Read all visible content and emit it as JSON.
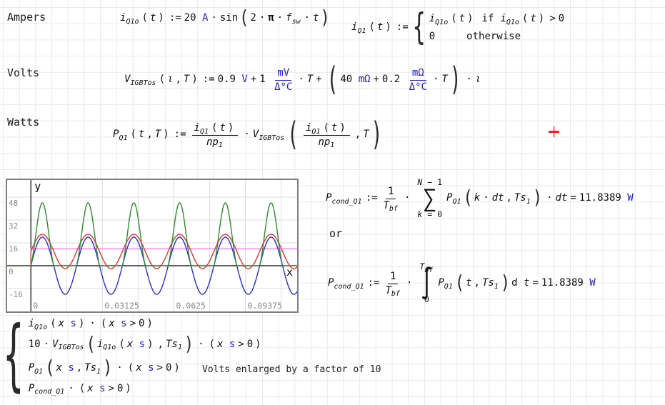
{
  "labels": {
    "ampers": "Ampers",
    "volts": "Volts",
    "watts": "Watts",
    "or": "or",
    "caption": "Volts enlarged by a factor of 10"
  },
  "results": {
    "p_cond_value": "11.8389",
    "p_cond_unit": "W"
  },
  "formulas": {
    "iq1o": {
      "parts": [
        {
          "t": "i",
          "c": "v"
        },
        {
          "t": "Q1o",
          "c": "s"
        },
        {
          "t": "(",
          "c": "p"
        },
        {
          "t": "t",
          "c": "v"
        },
        {
          "t": ")",
          "c": "p"
        },
        {
          "t": ":=",
          "c": "o"
        },
        {
          "t": "20 "
        },
        {
          "t": "A",
          "c": "u"
        },
        {
          "t": "·",
          "c": "o"
        },
        {
          "t": "sin"
        },
        {
          "t": "(",
          "c": "bp"
        },
        {
          "t": "2"
        },
        {
          "t": "·",
          "c": "o"
        },
        {
          "t": "π",
          "c": "b"
        },
        {
          "t": "·",
          "c": "o"
        },
        {
          "t": "f",
          "c": "v"
        },
        {
          "t": "sw",
          "c": "s"
        },
        {
          "t": "·",
          "c": "o"
        },
        {
          "t": "t",
          "c": "v"
        },
        {
          "t": ")",
          "c": "bp"
        }
      ]
    },
    "iq1": {
      "parts": [
        {
          "t": "i",
          "c": "v"
        },
        {
          "t": "Q1",
          "c": "s"
        },
        {
          "t": "(",
          "c": "p"
        },
        {
          "t": "t",
          "c": "v"
        },
        {
          "t": ")",
          "c": "p"
        },
        {
          "t": ":=",
          "c": "o"
        },
        {
          "t": "{",
          "c": "brace2"
        },
        {
          "rows": [
            [
              {
                "t": "i",
                "c": "v"
              },
              {
                "t": "Q1o",
                "c": "s"
              },
              {
                "t": "(",
                "c": "p"
              },
              {
                "t": "t",
                "c": "v"
              },
              {
                "t": ")",
                "c": "p"
              },
              {
                "t": "if",
                "c": "o2"
              },
              {
                "t": "i",
                "c": "v"
              },
              {
                "t": "Q1o",
                "c": "s"
              },
              {
                "t": "(",
                "c": "p"
              },
              {
                "t": "t",
                "c": "v"
              },
              {
                "t": ")",
                "c": "p"
              },
              {
                "t": ">",
                "c": "o"
              },
              {
                "t": "0"
              }
            ],
            [
              {
                "t": "0"
              },
              {
                "t": "otherwise",
                "c": "ml44"
              }
            ]
          ]
        }
      ]
    },
    "vigbtos": {
      "parts": [
        {
          "t": "V",
          "c": "v"
        },
        {
          "t": "IGBTos",
          "c": "s"
        },
        {
          "t": "(",
          "c": "p"
        },
        {
          "t": "ι",
          "c": "v"
        },
        {
          "t": ",",
          "c": "p"
        },
        {
          "t": "T",
          "c": "v"
        },
        {
          "t": ")",
          "c": "p"
        },
        {
          "t": ":=",
          "c": "o"
        },
        {
          "t": "0.9 "
        },
        {
          "t": "V",
          "c": "u"
        },
        {
          "t": "+",
          "c": "o"
        },
        {
          "t": "1 "
        },
        {
          "c": "u",
          "frac": {
            "n": [
              {
                "t": "mV",
                "c": "u"
              }
            ],
            "d": [
              {
                "t": "Δ°C",
                "c": "u"
              }
            ]
          }
        },
        {
          "t": "·",
          "c": "o"
        },
        {
          "t": "T",
          "c": "v"
        },
        {
          "t": "+",
          "c": "o"
        },
        {
          "t": "(",
          "c": "bp2"
        },
        {
          "t": "40 "
        },
        {
          "t": "mΩ",
          "c": "u"
        },
        {
          "t": "+",
          "c": "o"
        },
        {
          "t": "0.2 "
        },
        {
          "c": "u",
          "frac": {
            "n": [
              {
                "t": "mΩ",
                "c": "u"
              }
            ],
            "d": [
              {
                "t": "Δ°C",
                "c": "u"
              }
            ]
          }
        },
        {
          "t": "·",
          "c": "o"
        },
        {
          "t": "T",
          "c": "v"
        },
        {
          "t": ")",
          "c": "bp2"
        },
        {
          "t": "·",
          "c": "o"
        },
        {
          "t": "ι",
          "c": "v"
        }
      ]
    },
    "pq1": {
      "parts": [
        {
          "t": "P",
          "c": "v"
        },
        {
          "t": "Q1",
          "c": "s"
        },
        {
          "t": "(",
          "c": "p"
        },
        {
          "t": "t",
          "c": "v"
        },
        {
          "t": ",",
          "c": "p"
        },
        {
          "t": "T",
          "c": "v"
        },
        {
          "t": ")",
          "c": "p"
        },
        {
          "t": ":=",
          "c": "o"
        },
        {
          "frac": {
            "n": [
              {
                "t": "i",
                "c": "v"
              },
              {
                "t": "Q1",
                "c": "s"
              },
              {
                "t": "(",
                "c": "p"
              },
              {
                "t": "t",
                "c": "v"
              },
              {
                "t": ")",
                "c": "p"
              }
            ],
            "d": [
              {
                "t": "np",
                "c": "v"
              },
              {
                "t": "1",
                "c": "s"
              }
            ]
          }
        },
        {
          "t": "·",
          "c": "o"
        },
        {
          "t": "V",
          "c": "v"
        },
        {
          "t": "IGBTos",
          "c": "s"
        },
        {
          "t": "(",
          "c": "bp2"
        },
        {
          "frac": {
            "n": [
              {
                "t": "i",
                "c": "v"
              },
              {
                "t": "Q1",
                "c": "s"
              },
              {
                "t": "(",
                "c": "p"
              },
              {
                "t": "t",
                "c": "v"
              },
              {
                "t": ")",
                "c": "p"
              }
            ],
            "d": [
              {
                "t": "np",
                "c": "v"
              },
              {
                "t": "1",
                "c": "s"
              }
            ]
          }
        },
        {
          "t": ",",
          "c": "p"
        },
        {
          "t": "T",
          "c": "v"
        },
        {
          "t": ")",
          "c": "bp2"
        }
      ]
    },
    "pcond_sum": {
      "parts": [
        {
          "t": "P",
          "c": "v"
        },
        {
          "t": "cond_Q1",
          "c": "s"
        },
        {
          "t": ":=",
          "c": "o"
        },
        {
          "frac": {
            "n": [
              {
                "t": "1"
              }
            ],
            "d": [
              {
                "t": "T",
                "c": "v"
              },
              {
                "t": "bf",
                "c": "s"
              }
            ]
          }
        },
        {
          "t": "·",
          "c": "o"
        },
        {
          "stack": {
            "top": [
              {
                "t": "N",
                "c": "v"
              },
              {
                "t": " − 1"
              }
            ],
            "sym": "∑",
            "symc": "sum",
            "bot": [
              {
                "t": "k",
                "c": "v"
              },
              {
                "t": " = 0"
              }
            ]
          }
        },
        {
          "t": "P",
          "c": "v"
        },
        {
          "t": "Q1",
          "c": "s"
        },
        {
          "t": "(",
          "c": "bp"
        },
        {
          "t": "k",
          "c": "v"
        },
        {
          "t": "·",
          "c": "o"
        },
        {
          "t": "dt",
          "c": "v"
        },
        {
          "t": ",",
          "c": "p"
        },
        {
          "t": "Ts",
          "c": "v"
        },
        {
          "t": "1",
          "c": "s"
        },
        {
          "t": ")",
          "c": "bp"
        },
        {
          "t": "·",
          "c": "o"
        },
        {
          "t": "dt",
          "c": "v"
        },
        {
          "t": "=",
          "c": "o"
        },
        {
          "t": "11.8389 "
        },
        {
          "t": "W",
          "c": "u"
        }
      ]
    },
    "pcond_int": {
      "parts": [
        {
          "t": "P",
          "c": "v"
        },
        {
          "t": "cond_Q1",
          "c": "s"
        },
        {
          "t": ":=",
          "c": "o"
        },
        {
          "frac": {
            "n": [
              {
                "t": "1"
              }
            ],
            "d": [
              {
                "t": "T",
                "c": "v"
              },
              {
                "t": "bf",
                "c": "s"
              }
            ]
          }
        },
        {
          "t": "·",
          "c": "o"
        },
        {
          "stack": {
            "top": [
              {
                "t": "T",
                "c": "v"
              },
              {
                "t": "bf",
                "c": "s"
              }
            ],
            "sym": "∫",
            "symc": "int",
            "bot": [
              {
                "t": "0"
              }
            ]
          }
        },
        {
          "t": "P",
          "c": "v"
        },
        {
          "t": "Q1",
          "c": "s"
        },
        {
          "t": "(",
          "c": "bp"
        },
        {
          "t": "t",
          "c": "v"
        },
        {
          "t": ",",
          "c": "p"
        },
        {
          "t": "Ts",
          "c": "v"
        },
        {
          "t": "1",
          "c": "s"
        },
        {
          "t": ")",
          "c": "bp"
        },
        {
          "t": "d "
        },
        {
          "t": "t",
          "c": "v"
        },
        {
          "t": "=",
          "c": "o"
        },
        {
          "t": "11.8389 "
        },
        {
          "t": "W",
          "c": "u"
        }
      ]
    },
    "tracelist": {
      "parts": [
        {
          "t": "{",
          "c": "brace4"
        },
        {
          "c": "tr",
          "rows": [
            [
              {
                "t": "i",
                "c": "v"
              },
              {
                "t": "Q1o",
                "c": "s"
              },
              {
                "t": "(",
                "c": "p"
              },
              {
                "t": "x",
                "c": "v"
              },
              {
                "t": " "
              },
              {
                "t": "s",
                "c": "u"
              },
              {
                "t": ")",
                "c": "p"
              },
              {
                "t": "·",
                "c": "o"
              },
              {
                "t": "(",
                "c": "p"
              },
              {
                "t": "x",
                "c": "v"
              },
              {
                "t": " "
              },
              {
                "t": "s",
                "c": "u"
              },
              {
                "t": ">",
                "c": "o"
              },
              {
                "t": "0"
              },
              {
                "t": ")",
                "c": "p"
              }
            ],
            [
              {
                "t": "10"
              },
              {
                "t": "·",
                "c": "o"
              },
              {
                "t": "V",
                "c": "v"
              },
              {
                "t": "IGBTos",
                "c": "s"
              },
              {
                "t": "(",
                "c": "bp"
              },
              {
                "t": "i",
                "c": "v"
              },
              {
                "t": "Q1o",
                "c": "s"
              },
              {
                "t": "(",
                "c": "p"
              },
              {
                "t": "x",
                "c": "v"
              },
              {
                "t": " "
              },
              {
                "t": "s",
                "c": "u"
              },
              {
                "t": ")",
                "c": "p"
              },
              {
                "t": ",",
                "c": "p"
              },
              {
                "t": "Ts",
                "c": "v"
              },
              {
                "t": "1",
                "c": "s"
              },
              {
                "t": ")",
                "c": "bp"
              },
              {
                "t": "·",
                "c": "o"
              },
              {
                "t": "(",
                "c": "p"
              },
              {
                "t": "x",
                "c": "v"
              },
              {
                "t": " "
              },
              {
                "t": "s",
                "c": "u"
              },
              {
                "t": ">",
                "c": "o"
              },
              {
                "t": "0"
              },
              {
                "t": ")",
                "c": "p"
              }
            ],
            [
              {
                "t": "P",
                "c": "v"
              },
              {
                "t": "Q1",
                "c": "s"
              },
              {
                "t": "(",
                "c": "bp"
              },
              {
                "t": "x",
                "c": "v"
              },
              {
                "t": " "
              },
              {
                "t": "s",
                "c": "u"
              },
              {
                "t": ",",
                "c": "p"
              },
              {
                "t": "Ts",
                "c": "v"
              },
              {
                "t": "1",
                "c": "s"
              },
              {
                "t": ")",
                "c": "bp"
              },
              {
                "t": "·",
                "c": "o"
              },
              {
                "t": "(",
                "c": "p"
              },
              {
                "t": "x",
                "c": "v"
              },
              {
                "t": " "
              },
              {
                "t": "s",
                "c": "u"
              },
              {
                "t": ">",
                "c": "o"
              },
              {
                "t": "0"
              },
              {
                "t": ")",
                "c": "p"
              }
            ],
            [
              {
                "t": "P",
                "c": "v"
              },
              {
                "t": "cond_Q1",
                "c": "s"
              },
              {
                "t": "·",
                "c": "o"
              },
              {
                "t": "(",
                "c": "p"
              },
              {
                "t": "x",
                "c": "v"
              },
              {
                "t": " "
              },
              {
                "t": "s",
                "c": "u"
              },
              {
                "t": ">",
                "c": "o"
              },
              {
                "t": "0"
              },
              {
                "t": ")",
                "c": "p"
              }
            ]
          ]
        }
      ]
    }
  },
  "chart_data": {
    "type": "line",
    "title": "",
    "xlabel": "x",
    "ylabel": "y",
    "xlim": [
      -0.011,
      0.117
    ],
    "ylim": [
      -33,
      61
    ],
    "x_ticks": [
      0,
      0.03125,
      0.0625,
      0.09375
    ],
    "x_tick_labels": [
      "0",
      "0.03125",
      "0.0625",
      "0.09375"
    ],
    "x_grid_step": 0.015625,
    "y_ticks": [
      48,
      32,
      16,
      0,
      -16
    ],
    "y_tick_labels": [
      "48",
      "32",
      "16",
      "0",
      "-16"
    ],
    "grid": true,
    "frequency_hz": 50,
    "frame_color": "#7f7f7f",
    "grid_color": "#dcdcdc",
    "tick_label_color": "#8a8a8a",
    "series": [
      {
        "name": "i_Q1o(x s)·(x s>0)",
        "color": "#2b2bdf",
        "z": 1,
        "peak": 20,
        "min": -20,
        "model": {
          "kind": "sine",
          "amplitude": 20,
          "offset": 0
        }
      },
      {
        "name": "10·V_IGBTos(i_Q1o(x s),Ts_1)·(x s>0)",
        "color": "#e63434",
        "z": 2,
        "peak": 22,
        "min": -2,
        "model": {
          "kind": "sine",
          "amplitude": 12,
          "offset": 10
        }
      },
      {
        "name": "P_Q1(x s,Ts_1)·(x s>0)",
        "color": "#2e8b2e",
        "z": 3,
        "peak": 44,
        "min": 0,
        "model": {
          "kind": "power",
          "amplitude": 20,
          "offset": 10,
          "scale": 12
        }
      },
      {
        "name": "P_cond_Q1·(x s>0)",
        "color": "#f584f5",
        "z": 0,
        "value": 11.8389,
        "model": {
          "kind": "constant",
          "value": 11.8389
        }
      }
    ]
  }
}
